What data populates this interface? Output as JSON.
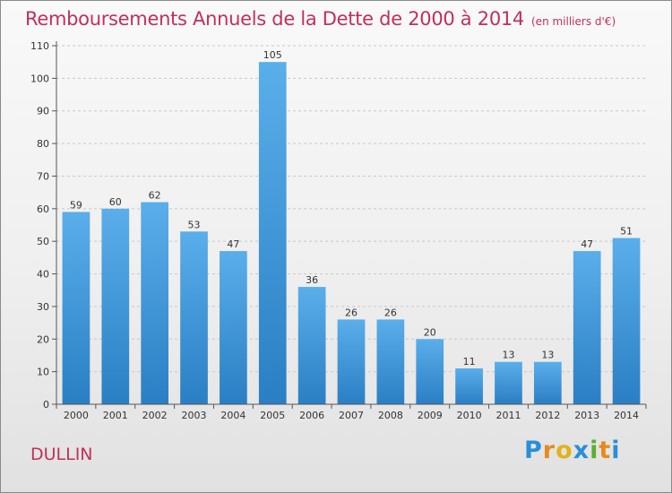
{
  "header": {
    "title": "Remboursements Annuels de la Dette de 2000 à 2014",
    "unit": "(en milliers d'€)"
  },
  "footer": {
    "place": "DULLIN",
    "logo": [
      "P",
      "r",
      "o",
      "x",
      "i",
      "t",
      "i"
    ]
  },
  "chart_data": {
    "type": "bar",
    "title": "Remboursements Annuels de la Dette de 2000 à 2014",
    "subtitle": "(en milliers d'€)",
    "categories": [
      "2000",
      "2001",
      "2002",
      "2003",
      "2004",
      "2005",
      "2006",
      "2007",
      "2008",
      "2009",
      "2010",
      "2011",
      "2012",
      "2013",
      "2014"
    ],
    "values": [
      59,
      60,
      62,
      53,
      47,
      105,
      36,
      26,
      26,
      20,
      11,
      13,
      13,
      47,
      51
    ],
    "xlabel": "",
    "ylabel": "",
    "ylim": [
      0,
      110
    ],
    "yticks": [
      0,
      10,
      20,
      30,
      40,
      50,
      60,
      70,
      80,
      90,
      100,
      110
    ],
    "grid": true,
    "bar_color": "#4a9ee0"
  }
}
